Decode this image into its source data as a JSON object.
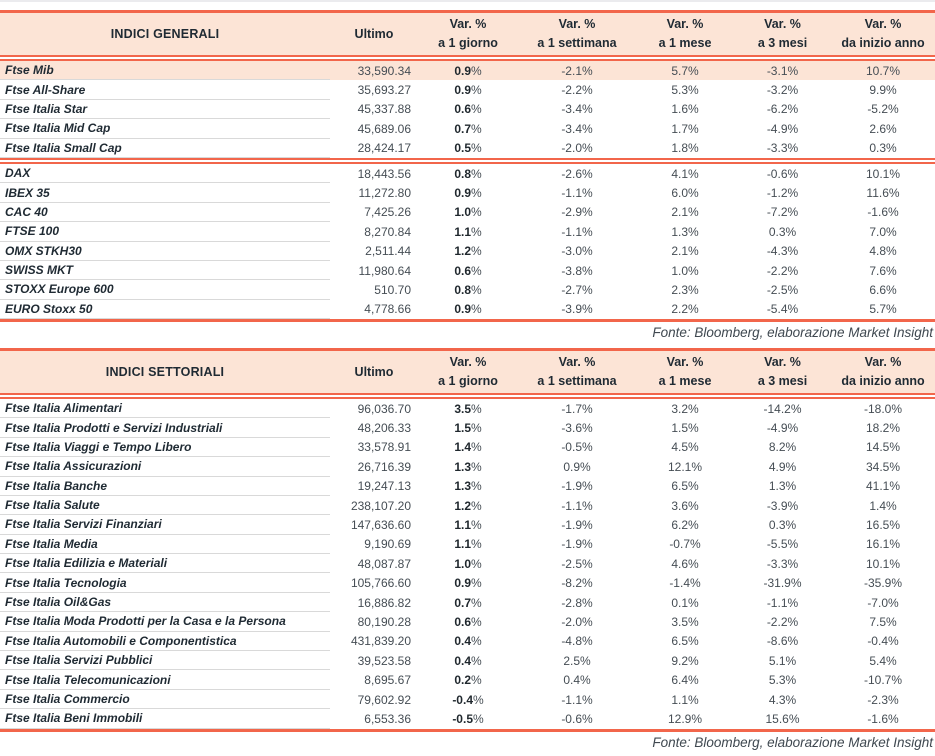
{
  "colors": {
    "accent_line": "#F2664B",
    "header_bg": "#FCE4D6",
    "highlight_row_bg": "#FCE4D6",
    "row_separator": "#D9D9D9"
  },
  "columns": {
    "ultimo_label": "Ultimo",
    "var_headers": [
      {
        "line1": "Var. %",
        "line2": "a 1 giorno"
      },
      {
        "line1": "Var. %",
        "line2": "a 1 settimana"
      },
      {
        "line1": "Var. %",
        "line2": "a 1 mese"
      },
      {
        "line1": "Var. %",
        "line2": "a 3 mesi"
      },
      {
        "line1": "Var. %",
        "line2": "da inizio anno"
      }
    ]
  },
  "tables": [
    {
      "id": "indici-generali",
      "title": "INDICI GENERALI",
      "source_note": "Fonte: Bloomberg, elaborazione Market Insight",
      "groups": [
        {
          "rows": [
            {
              "name": "Ftse Mib",
              "highlight": true,
              "ultimo": "33,590.34",
              "vars": [
                "0.9%",
                "-2.1%",
                "5.7%",
                "-3.1%",
                "10.7%"
              ]
            },
            {
              "name": "Ftse All-Share",
              "highlight": false,
              "ultimo": "35,693.27",
              "vars": [
                "0.9%",
                "-2.2%",
                "5.3%",
                "-3.2%",
                "9.9%"
              ]
            },
            {
              "name": "Ftse Italia Star",
              "highlight": false,
              "ultimo": "45,337.88",
              "vars": [
                "0.6%",
                "-3.4%",
                "1.6%",
                "-6.2%",
                "-5.2%"
              ]
            },
            {
              "name": "Ftse Italia Mid Cap",
              "highlight": false,
              "ultimo": "45,689.06",
              "vars": [
                "0.7%",
                "-3.4%",
                "1.7%",
                "-4.9%",
                "2.6%"
              ]
            },
            {
              "name": "Ftse Italia Small Cap",
              "highlight": false,
              "ultimo": "28,424.17",
              "vars": [
                "0.5%",
                "-2.0%",
                "1.8%",
                "-3.3%",
                "0.3%"
              ]
            }
          ]
        },
        {
          "rows": [
            {
              "name": "DAX",
              "highlight": false,
              "ultimo": "18,443.56",
              "vars": [
                "0.8%",
                "-2.6%",
                "4.1%",
                "-0.6%",
                "10.1%"
              ]
            },
            {
              "name": "IBEX 35",
              "highlight": false,
              "ultimo": "11,272.80",
              "vars": [
                "0.9%",
                "-1.1%",
                "6.0%",
                "-1.2%",
                "11.6%"
              ]
            },
            {
              "name": "CAC 40",
              "highlight": false,
              "ultimo": "7,425.26",
              "vars": [
                "1.0%",
                "-2.9%",
                "2.1%",
                "-7.2%",
                "-1.6%"
              ]
            },
            {
              "name": "FTSE 100",
              "highlight": false,
              "ultimo": "8,270.84",
              "vars": [
                "1.1%",
                "-1.1%",
                "1.3%",
                "0.3%",
                "7.0%"
              ]
            },
            {
              "name": "OMX STKH30",
              "highlight": false,
              "ultimo": "2,511.44",
              "vars": [
                "1.2%",
                "-3.0%",
                "2.1%",
                "-4.3%",
                "4.8%"
              ]
            },
            {
              "name": "SWISS MKT",
              "highlight": false,
              "ultimo": "11,980.64",
              "vars": [
                "0.6%",
                "-3.8%",
                "1.0%",
                "-2.2%",
                "7.6%"
              ]
            },
            {
              "name": "STOXX Europe 600",
              "highlight": false,
              "ultimo": "510.70",
              "vars": [
                "0.8%",
                "-2.7%",
                "2.3%",
                "-2.5%",
                "6.6%"
              ]
            },
            {
              "name": "EURO Stoxx 50",
              "highlight": false,
              "ultimo": "4,778.66",
              "vars": [
                "0.9%",
                "-3.9%",
                "2.2%",
                "-5.4%",
                "5.7%"
              ]
            }
          ]
        }
      ]
    },
    {
      "id": "indici-settoriali",
      "title": "INDICI SETTORIALI",
      "source_note": "Fonte: Bloomberg, elaborazione Market Insight",
      "groups": [
        {
          "rows": [
            {
              "name": "Ftse Italia Alimentari",
              "highlight": false,
              "ultimo": "96,036.70",
              "vars": [
                "3.5%",
                "-1.7%",
                "3.2%",
                "-14.2%",
                "-18.0%"
              ]
            },
            {
              "name": "Ftse Italia Prodotti e Servizi Industriali",
              "highlight": false,
              "ultimo": "48,206.33",
              "vars": [
                "1.5%",
                "-3.6%",
                "1.5%",
                "-4.9%",
                "18.2%"
              ]
            },
            {
              "name": "Ftse Italia Viaggi e Tempo Libero",
              "highlight": false,
              "ultimo": "33,578.91",
              "vars": [
                "1.4%",
                "-0.5%",
                "4.5%",
                "8.2%",
                "14.5%"
              ]
            },
            {
              "name": "Ftse Italia Assicurazioni",
              "highlight": false,
              "ultimo": "26,716.39",
              "vars": [
                "1.3%",
                "0.9%",
                "12.1%",
                "4.9%",
                "34.5%"
              ]
            },
            {
              "name": "Ftse Italia Banche",
              "highlight": false,
              "ultimo": "19,247.13",
              "vars": [
                "1.3%",
                "-1.9%",
                "6.5%",
                "1.3%",
                "41.1%"
              ]
            },
            {
              "name": "Ftse Italia Salute",
              "highlight": false,
              "ultimo": "238,107.20",
              "vars": [
                "1.2%",
                "-1.1%",
                "3.6%",
                "-3.9%",
                "1.4%"
              ]
            },
            {
              "name": "Ftse Italia Servizi Finanziari",
              "highlight": false,
              "ultimo": "147,636.60",
              "vars": [
                "1.1%",
                "-1.9%",
                "6.2%",
                "0.3%",
                "16.5%"
              ]
            },
            {
              "name": "Ftse Italia Media",
              "highlight": false,
              "ultimo": "9,190.69",
              "vars": [
                "1.1%",
                "-1.9%",
                "-0.7%",
                "-5.5%",
                "16.1%"
              ]
            },
            {
              "name": "Ftse Italia Edilizia e Materiali",
              "highlight": false,
              "ultimo": "48,087.87",
              "vars": [
                "1.0%",
                "-2.5%",
                "4.6%",
                "-3.3%",
                "10.1%"
              ]
            },
            {
              "name": "Ftse Italia Tecnologia",
              "highlight": false,
              "ultimo": "105,766.60",
              "vars": [
                "0.9%",
                "-8.2%",
                "-1.4%",
                "-31.9%",
                "-35.9%"
              ]
            },
            {
              "name": "Ftse Italia Oil&Gas",
              "highlight": false,
              "ultimo": "16,886.82",
              "vars": [
                "0.7%",
                "-2.8%",
                "0.1%",
                "-1.1%",
                "-7.0%"
              ]
            },
            {
              "name": "Ftse Italia Moda Prodotti per la Casa e la Persona",
              "highlight": false,
              "ultimo": "80,190.28",
              "vars": [
                "0.6%",
                "-2.0%",
                "3.5%",
                "-2.2%",
                "7.5%"
              ]
            },
            {
              "name": "Ftse Italia Automobili e Componentistica",
              "highlight": false,
              "ultimo": "431,839.20",
              "vars": [
                "0.4%",
                "-4.8%",
                "6.5%",
                "-8.6%",
                "-0.4%"
              ]
            },
            {
              "name": "Ftse Italia Servizi Pubblici",
              "highlight": false,
              "ultimo": "39,523.58",
              "vars": [
                "0.4%",
                "2.5%",
                "9.2%",
                "5.1%",
                "5.4%"
              ]
            },
            {
              "name": "Ftse Italia Telecomunicazioni",
              "highlight": false,
              "ultimo": "8,695.67",
              "vars": [
                "0.2%",
                "0.4%",
                "6.4%",
                "5.3%",
                "-10.7%"
              ]
            },
            {
              "name": "Ftse Italia Commercio",
              "highlight": false,
              "ultimo": "79,602.92",
              "vars": [
                "-0.4%",
                "-1.1%",
                "1.1%",
                "4.3%",
                "-2.3%"
              ]
            },
            {
              "name": "Ftse Italia Beni Immobili",
              "highlight": false,
              "ultimo": "6,553.36",
              "vars": [
                "-0.5%",
                "-0.6%",
                "12.9%",
                "15.6%",
                "-1.6%"
              ]
            }
          ]
        }
      ]
    }
  ]
}
